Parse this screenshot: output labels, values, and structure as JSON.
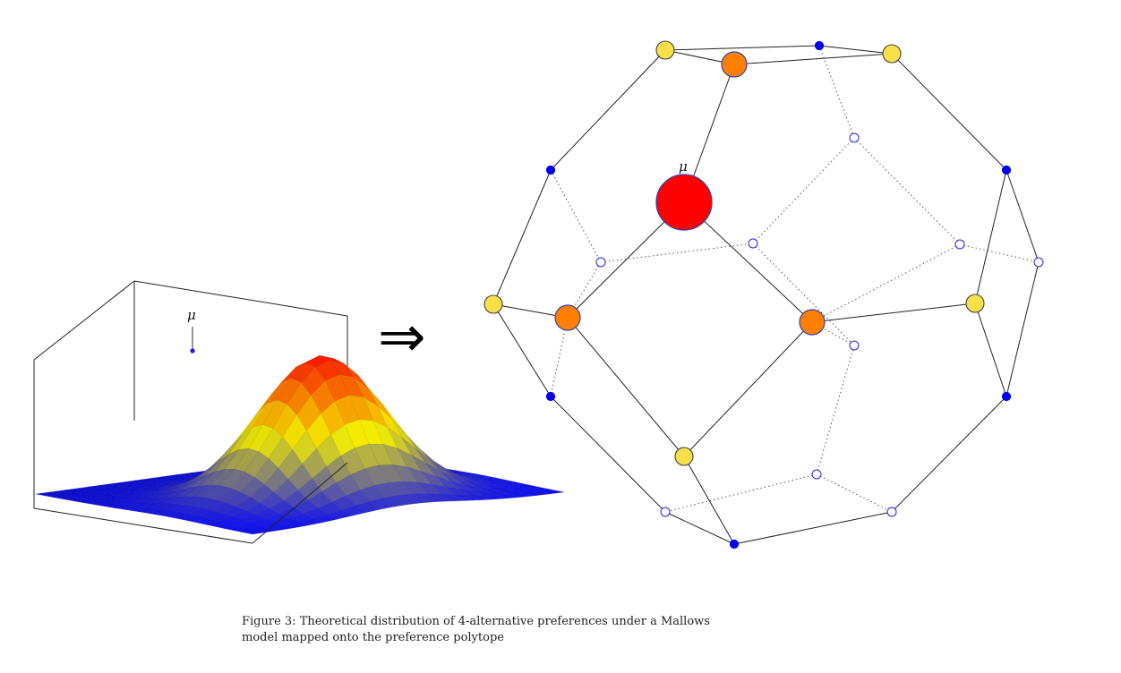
{
  "figure": {
    "mu_label": "μ",
    "arrow_symbol": "⇒",
    "surface_colors": {
      "low": "#1010f0",
      "mid": "#f5f000",
      "high": "#ff1a00"
    },
    "node_colors": {
      "peak": "#ff0000",
      "rank1": "#ff7f00",
      "rank2": "#f7e04a",
      "filled": "#0000ee",
      "hollow_stroke": "#2222ee"
    }
  },
  "caption": {
    "line1": "Figure 3: Theoretical distribution of 4-alternative preferences under a Mallows",
    "line2": "model mapped onto the preference polytope"
  }
}
